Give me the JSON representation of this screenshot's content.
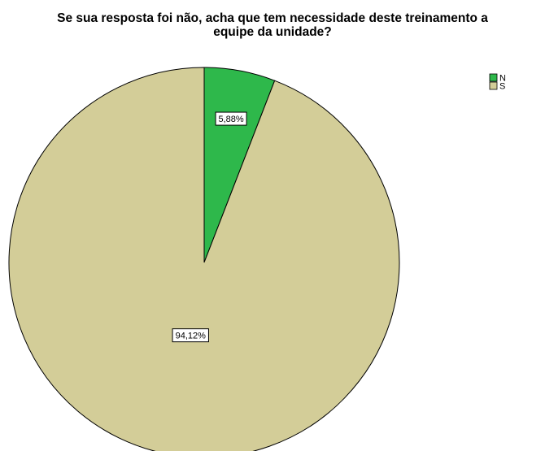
{
  "chart_data": {
    "type": "pie",
    "title_lines": [
      "Se sua resposta foi não, acha que tem necessidade deste treinamento a",
      "equipe da unidade?"
    ],
    "slices": [
      {
        "label": "N",
        "value": 5.88,
        "display": "5,88%",
        "color": "#2eb84b"
      },
      {
        "label": "S",
        "value": 94.12,
        "display": "94,12%",
        "color": "#d3cd98"
      }
    ],
    "legend": {
      "position": "top-right"
    },
    "start_angle": "12 o'clock",
    "direction": "clockwise"
  }
}
